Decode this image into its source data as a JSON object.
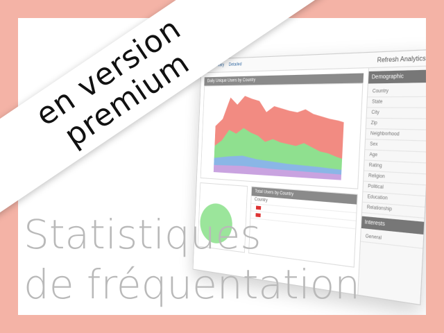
{
  "banner": {
    "line1": "en version",
    "line2": "premium"
  },
  "headline": {
    "line1": "Statistiques",
    "line2": "de fréquentation"
  },
  "screenshot": {
    "app_title": "Refresh Analytics",
    "tabs": [
      "Summary",
      "Detailed"
    ],
    "chart_panel_title": "Daily Unique Users by Country",
    "table_panel_title": "Total Users by Country",
    "table_header": "Country",
    "sidebar_title": "Demographic",
    "sidebar_items": [
      "Country",
      "State",
      "City",
      "Zip",
      "Neighborhood",
      "Sex",
      "Age",
      "Rating",
      "Religion",
      "Political",
      "Education",
      "Relationship"
    ],
    "sidebar_title2": "Interests",
    "sidebar_items2": [
      "General"
    ],
    "colors": {
      "red_area": "#f28b82",
      "green_area": "#8fe08f",
      "blue_area": "#8ab6e6",
      "pie": "#9be59b"
    }
  }
}
